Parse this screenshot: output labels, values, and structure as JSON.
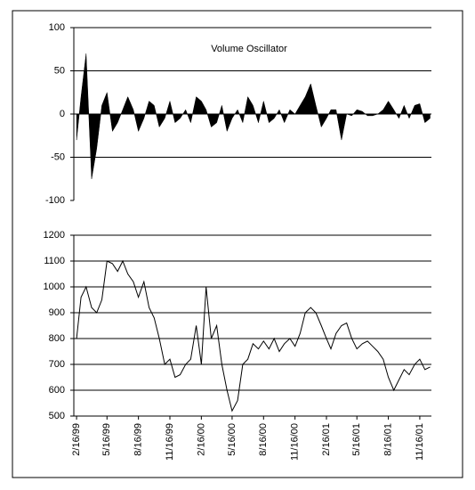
{
  "chart_data": [
    {
      "type": "area",
      "title": "Volume Oscillator",
      "x": [
        "2/16/99",
        "3/1/99",
        "3/16/99",
        "4/1/99",
        "4/16/99",
        "5/1/99",
        "5/16/99",
        "6/1/99",
        "6/16/99",
        "7/1/99",
        "7/16/99",
        "8/1/99",
        "8/16/99",
        "9/1/99",
        "9/16/99",
        "10/1/99",
        "10/16/99",
        "11/1/99",
        "11/16/99",
        "12/1/99",
        "12/16/99",
        "1/1/00",
        "1/16/00",
        "2/1/00",
        "2/16/00",
        "3/1/00",
        "3/16/00",
        "4/1/00",
        "4/16/00",
        "5/1/00",
        "5/16/00",
        "6/1/00",
        "6/16/00",
        "7/1/00",
        "7/16/00",
        "8/1/00",
        "8/16/00",
        "9/1/00",
        "9/16/00",
        "10/1/00",
        "10/16/00",
        "11/1/00",
        "11/16/00",
        "12/1/00",
        "12/16/00",
        "1/1/01",
        "1/16/01",
        "2/1/01",
        "2/16/01",
        "3/1/01",
        "3/16/01",
        "4/1/01",
        "4/16/01",
        "5/1/01",
        "5/16/01",
        "6/1/01",
        "6/16/01",
        "7/1/01",
        "7/16/01",
        "8/1/01",
        "8/16/01",
        "9/1/01",
        "9/16/01",
        "10/1/01",
        "10/16/01",
        "11/1/01",
        "11/16/01",
        "12/1/01",
        "12/16/01"
      ],
      "values": [
        -30,
        20,
        70,
        -75,
        -40,
        10,
        25,
        -20,
        -10,
        5,
        20,
        5,
        -20,
        -5,
        15,
        10,
        -15,
        -5,
        15,
        -10,
        -5,
        5,
        -10,
        20,
        15,
        5,
        -15,
        -10,
        10,
        -20,
        -5,
        5,
        -10,
        20,
        10,
        -10,
        15,
        -10,
        -5,
        5,
        -10,
        5,
        0,
        10,
        20,
        35,
        10,
        -15,
        -5,
        5,
        5,
        -30,
        0,
        -2,
        5,
        3,
        -2,
        -2,
        0,
        5,
        15,
        5,
        -5,
        10,
        -5,
        10,
        12,
        -10,
        -5
      ],
      "color": "#000000",
      "xlim": [
        "2/8/99",
        "12/20/01"
      ],
      "ylim": [
        -100,
        100
      ],
      "yticks": [
        -100,
        -50,
        0,
        50,
        100
      ],
      "grid": true
    },
    {
      "type": "line",
      "x": [
        "2/16/99",
        "3/1/99",
        "3/16/99",
        "4/1/99",
        "4/16/99",
        "5/1/99",
        "5/16/99",
        "6/1/99",
        "6/16/99",
        "7/1/99",
        "7/16/99",
        "8/1/99",
        "8/16/99",
        "9/1/99",
        "9/16/99",
        "10/1/99",
        "10/16/99",
        "11/1/99",
        "11/16/99",
        "12/1/99",
        "12/16/99",
        "1/1/00",
        "1/16/00",
        "2/1/00",
        "2/16/00",
        "3/1/00",
        "3/16/00",
        "4/1/00",
        "4/16/00",
        "5/1/00",
        "5/16/00",
        "6/1/00",
        "6/16/00",
        "7/1/00",
        "7/16/00",
        "8/1/00",
        "8/16/00",
        "9/1/00",
        "9/16/00",
        "10/1/00",
        "10/16/00",
        "11/1/00",
        "11/16/00",
        "12/1/00",
        "12/16/00",
        "1/1/01",
        "1/16/01",
        "2/1/01",
        "2/16/01",
        "3/1/01",
        "3/16/01",
        "4/1/01",
        "4/16/01",
        "5/1/01",
        "5/16/01",
        "6/1/01",
        "6/16/01",
        "7/1/01",
        "7/16/01",
        "8/1/01",
        "8/16/01",
        "9/1/01",
        "9/16/01",
        "10/1/01",
        "10/16/01",
        "11/1/01",
        "11/16/01",
        "12/1/01",
        "12/16/01"
      ],
      "values": [
        800,
        960,
        1000,
        920,
        900,
        950,
        1100,
        1090,
        1060,
        1100,
        1050,
        1020,
        960,
        1020,
        920,
        880,
        800,
        700,
        720,
        650,
        660,
        700,
        720,
        850,
        700,
        1000,
        800,
        850,
        700,
        600,
        520,
        560,
        700,
        720,
        780,
        760,
        790,
        760,
        800,
        750,
        780,
        800,
        770,
        820,
        900,
        920,
        900,
        850,
        800,
        760,
        820,
        850,
        860,
        800,
        760,
        780,
        790,
        770,
        750,
        720,
        650,
        600,
        640,
        680,
        660,
        700,
        720,
        680,
        690
      ],
      "color": "#000000",
      "xlim": [
        "2/8/99",
        "12/20/01"
      ],
      "xticks": [
        "2/16/99",
        "5/16/99",
        "8/16/99",
        "11/16/99",
        "2/16/00",
        "5/16/00",
        "8/16/00",
        "11/16/00",
        "2/16/01",
        "5/16/01",
        "8/16/01",
        "11/16/01"
      ],
      "ylim": [
        500,
        1200
      ],
      "yticks": [
        500,
        600,
        700,
        800,
        900,
        1000,
        1100,
        1200
      ],
      "grid": true
    }
  ]
}
